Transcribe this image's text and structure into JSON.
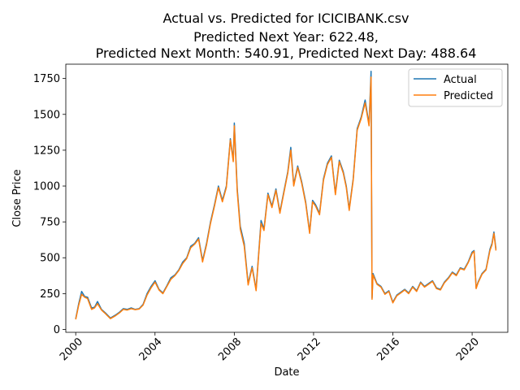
{
  "chart_data": {
    "type": "line",
    "title_lines": [
      "Actual vs. Predicted for ICICIBANK.csv",
      "Predicted Next Year: 622.48,",
      "Predicted Next Month: 540.91, Predicted Next Day: 488.64"
    ],
    "xlabel": "Date",
    "ylabel": "Close Price",
    "xlim": [
      1999.5,
      2021.8
    ],
    "ylim": [
      -20,
      1850
    ],
    "x_ticks": [
      2000,
      2004,
      2008,
      2012,
      2016,
      2020
    ],
    "y_ticks": [
      0,
      250,
      500,
      750,
      1000,
      1250,
      1500,
      1750
    ],
    "legend_position": "top-right",
    "series": [
      {
        "name": "Actual",
        "color": "#1f77b4"
      },
      {
        "name": "Predicted",
        "color": "#ff7f0e"
      }
    ],
    "x": [
      2000.0,
      2000.15,
      2000.3,
      2000.45,
      2000.6,
      2000.8,
      2000.95,
      2001.1,
      2001.3,
      2001.5,
      2001.75,
      2002.0,
      2002.2,
      2002.4,
      2002.6,
      2002.8,
      2003.0,
      2003.2,
      2003.4,
      2003.6,
      2003.8,
      2004.0,
      2004.2,
      2004.4,
      2004.6,
      2004.8,
      2005.0,
      2005.2,
      2005.4,
      2005.6,
      2005.8,
      2006.0,
      2006.2,
      2006.4,
      2006.6,
      2006.8,
      2007.0,
      2007.2,
      2007.4,
      2007.6,
      2007.8,
      2007.95,
      2008.0,
      2008.15,
      2008.3,
      2008.5,
      2008.7,
      2008.9,
      2009.1,
      2009.2,
      2009.35,
      2009.5,
      2009.7,
      2009.9,
      2010.1,
      2010.3,
      2010.5,
      2010.7,
      2010.85,
      2011.0,
      2011.2,
      2011.4,
      2011.6,
      2011.8,
      2011.95,
      2012.1,
      2012.3,
      2012.5,
      2012.7,
      2012.9,
      2013.1,
      2013.3,
      2013.5,
      2013.65,
      2013.8,
      2014.0,
      2014.2,
      2014.4,
      2014.6,
      2014.8,
      2014.9,
      2014.95,
      2015.0,
      2015.2,
      2015.4,
      2015.6,
      2015.8,
      2016.0,
      2016.2,
      2016.4,
      2016.6,
      2016.8,
      2017.0,
      2017.2,
      2017.4,
      2017.6,
      2017.8,
      2018.0,
      2018.2,
      2018.4,
      2018.6,
      2018.8,
      2019.0,
      2019.2,
      2019.4,
      2019.6,
      2019.8,
      2020.0,
      2020.1,
      2020.2,
      2020.3,
      2020.5,
      2020.7,
      2020.9,
      2021.0,
      2021.1,
      2021.2
    ],
    "actual": [
      75,
      180,
      265,
      230,
      225,
      150,
      155,
      195,
      140,
      115,
      80,
      100,
      120,
      145,
      140,
      150,
      140,
      145,
      175,
      250,
      300,
      340,
      280,
      255,
      305,
      360,
      380,
      415,
      470,
      500,
      580,
      600,
      640,
      480,
      600,
      750,
      870,
      1000,
      900,
      1000,
      1330,
      1180,
      1440,
      980,
      720,
      600,
      320,
      440,
      280,
      470,
      760,
      700,
      950,
      860,
      980,
      820,
      960,
      1100,
      1270,
      1010,
      1140,
      1030,
      890,
      680,
      900,
      870,
      810,
      1050,
      1160,
      1210,
      950,
      1180,
      1100,
      1000,
      840,
      1050,
      1400,
      1480,
      1600,
      1430,
      1800,
      220,
      390,
      320,
      300,
      250,
      270,
      190,
      240,
      260,
      280,
      255,
      300,
      270,
      330,
      300,
      320,
      340,
      290,
      280,
      330,
      360,
      400,
      380,
      430,
      420,
      470,
      540,
      550,
      290,
      330,
      390,
      420,
      560,
      600,
      680,
      560
    ],
    "predicted": [
      70,
      170,
      245,
      225,
      215,
      140,
      150,
      180,
      135,
      110,
      75,
      95,
      115,
      140,
      135,
      145,
      138,
      142,
      170,
      240,
      290,
      330,
      275,
      250,
      300,
      350,
      375,
      410,
      460,
      495,
      570,
      595,
      630,
      470,
      590,
      740,
      860,
      990,
      890,
      990,
      1320,
      1170,
      1420,
      960,
      700,
      580,
      310,
      430,
      270,
      460,
      740,
      690,
      940,
      850,
      970,
      810,
      950,
      1090,
      1250,
      1000,
      1130,
      1020,
      880,
      670,
      890,
      860,
      800,
      1040,
      1150,
      1200,
      940,
      1170,
      1090,
      990,
      830,
      1040,
      1390,
      1470,
      1580,
      1420,
      1760,
      210,
      380,
      315,
      295,
      245,
      265,
      185,
      235,
      255,
      275,
      250,
      295,
      265,
      325,
      295,
      315,
      335,
      285,
      275,
      325,
      355,
      395,
      375,
      425,
      415,
      465,
      530,
      545,
      285,
      325,
      385,
      415,
      550,
      590,
      670,
      550
    ]
  }
}
